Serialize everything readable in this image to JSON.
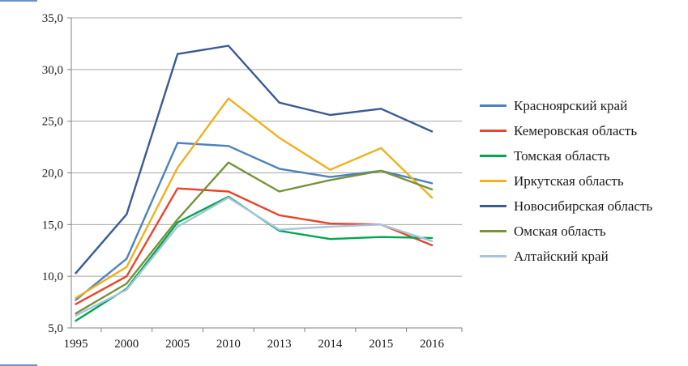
{
  "chart_data": {
    "type": "line",
    "title": "",
    "xlabel": "",
    "ylabel": "",
    "grid": true,
    "legend_position": "right",
    "categories": [
      "1995",
      "2000",
      "2005",
      "2010",
      "2013",
      "2014",
      "2015",
      "2016"
    ],
    "y_axis": {
      "min": 5,
      "max": 35,
      "step": 5,
      "tick_labels": [
        "5,0",
        "10,0",
        "15,0",
        "20,0",
        "25,0",
        "30,0",
        "35,0"
      ]
    },
    "series": [
      {
        "name": "Красноярский край",
        "color": "#4F81BD",
        "values": [
          7.7,
          11.7,
          22.9,
          22.6,
          20.4,
          19.6,
          20.2,
          19.0
        ]
      },
      {
        "name": "Кемеровская область",
        "color": "#E8442B",
        "values": [
          7.3,
          10.0,
          18.5,
          18.2,
          15.9,
          15.1,
          15.0,
          13.0
        ]
      },
      {
        "name": "Томская область",
        "color": "#00A651",
        "values": [
          5.7,
          8.8,
          15.2,
          17.7,
          14.4,
          13.6,
          13.8,
          13.7
        ]
      },
      {
        "name": "Иркутская область",
        "color": "#EFB11D",
        "values": [
          7.9,
          10.9,
          20.5,
          27.2,
          23.4,
          20.3,
          22.4,
          17.6
        ]
      },
      {
        "name": "Новосибирская область",
        "color": "#3A5A96",
        "values": [
          10.3,
          16.0,
          31.5,
          32.3,
          26.8,
          25.6,
          26.2,
          24.0
        ]
      },
      {
        "name": "Омская область",
        "color": "#76923C",
        "values": [
          6.4,
          9.3,
          15.5,
          21.0,
          18.2,
          19.3,
          20.2,
          18.4
        ]
      },
      {
        "name": "Алтайский край",
        "color": "#A8C4DE",
        "values": [
          6.2,
          8.7,
          14.8,
          17.6,
          14.5,
          14.8,
          15.0,
          13.4
        ]
      }
    ],
    "colors": {
      "gridline": "#A6A6A6",
      "axis": "#808080",
      "tick_text": "#1a1a1a"
    }
  }
}
